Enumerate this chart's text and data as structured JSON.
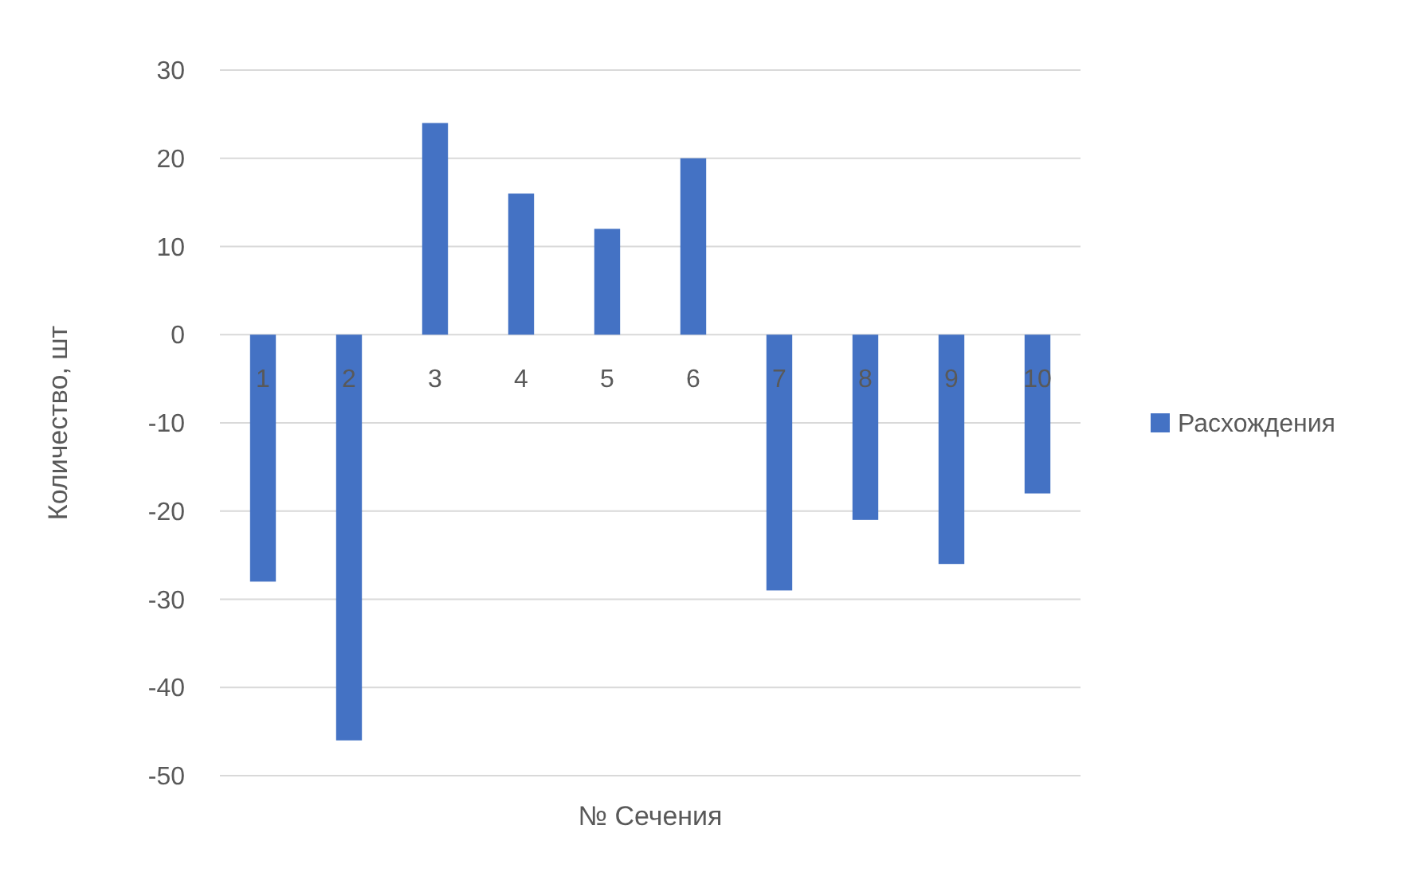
{
  "chart_data": {
    "type": "bar",
    "xlabel": "№ Сечения",
    "ylabel": "Количество, шт",
    "categories": [
      "1",
      "2",
      "3",
      "4",
      "5",
      "6",
      "7",
      "8",
      "9",
      "10"
    ],
    "series": [
      {
        "name": "Расхождения",
        "color": "#4472c4",
        "values": [
          -28,
          -46,
          24,
          16,
          12,
          20,
          -29,
          -21,
          -26,
          -18
        ]
      }
    ],
    "ylim": [
      -50,
      30
    ],
    "yticks": [
      -50,
      -40,
      -30,
      -20,
      -10,
      0,
      10,
      20,
      30
    ],
    "grid": "y",
    "legend": "right"
  }
}
